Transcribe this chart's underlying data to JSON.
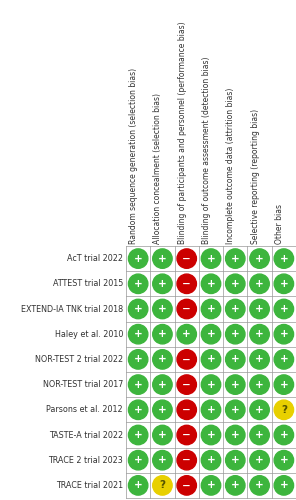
{
  "studies": [
    "AcT trial 2022",
    "ATTEST trial 2015",
    "EXTEND-IA TNK trial 2018",
    "Haley et al. 2010",
    "NOR-TEST 2 trial 2022",
    "NOR-TEST trial 2017",
    "Parsons et al. 2012",
    "TASTE-A trial 2022",
    "TRACE 2 trial 2023",
    "TRACE trial 2021"
  ],
  "categories": [
    "Random sequence generation (selection bias)",
    "Allocation concealment (selection bias)",
    "Blinding of participants and personnel (performance bias)",
    "Blinding of outcome assessment (detection bias)",
    "Incomplete outcome data (attrition bias)",
    "Selective reporting (reporting bias)",
    "Other bias"
  ],
  "data": [
    [
      "G",
      "G",
      "R",
      "G",
      "G",
      "G",
      "G"
    ],
    [
      "G",
      "G",
      "R",
      "G",
      "G",
      "G",
      "G"
    ],
    [
      "G",
      "G",
      "R",
      "G",
      "G",
      "G",
      "G"
    ],
    [
      "G",
      "G",
      "G",
      "G",
      "G",
      "G",
      "G"
    ],
    [
      "G",
      "G",
      "R",
      "G",
      "G",
      "G",
      "G"
    ],
    [
      "G",
      "G",
      "R",
      "G",
      "G",
      "G",
      "G"
    ],
    [
      "G",
      "G",
      "R",
      "G",
      "G",
      "G",
      "Y"
    ],
    [
      "G",
      "G",
      "R",
      "G",
      "G",
      "G",
      "G"
    ],
    [
      "G",
      "G",
      "R",
      "G",
      "G",
      "G",
      "G"
    ],
    [
      "G",
      "Y",
      "R",
      "G",
      "G",
      "G",
      "G"
    ]
  ],
  "color_map": {
    "G": "#3db53d",
    "R": "#cc0000",
    "Y": "#e8d000"
  },
  "symbol_map": {
    "G": "+",
    "R": "−",
    "Y": "?"
  },
  "sym_color_map": {
    "G": "white",
    "R": "white",
    "Y": "#555500"
  },
  "grid_color": "#999999",
  "label_color": "#333333",
  "header_color": "#333333",
  "font_size_labels": 5.8,
  "font_size_header": 5.5,
  "font_size_symbol": 7.5
}
